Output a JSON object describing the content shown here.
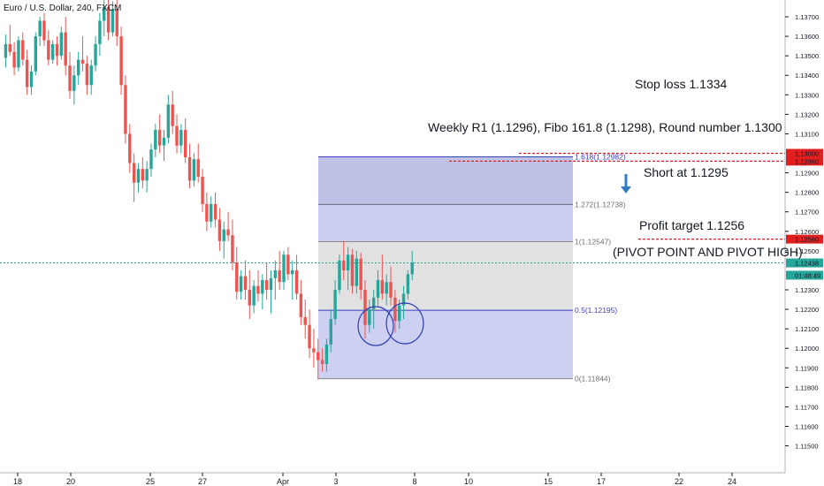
{
  "chart_data": {
    "type": "candlestick",
    "symbol_title": "Euro / U.S. Dollar, 240, FXCM",
    "x_tick_labels": [
      "18",
      "20",
      "25",
      "27",
      "Apr",
      "3",
      "8",
      "10",
      "15",
      "17",
      "22",
      "24"
    ],
    "y_tick_labels": [
      "1.13700",
      "1.13600",
      "1.13500",
      "1.13400",
      "1.13300",
      "1.13200",
      "1.13100",
      "1.12900",
      "1.12800",
      "1.12700",
      "1.12600",
      "1.12500",
      "1.12300",
      "1.12200",
      "1.12100",
      "1.12000",
      "1.11900",
      "1.11800",
      "1.11700",
      "1.11600",
      "1.11500"
    ],
    "ylim": [
      1.1143,
      1.1375
    ],
    "price_tags": [
      {
        "value": 1.13,
        "label": "1.13000",
        "kind": "level"
      },
      {
        "value": 1.1296,
        "label": "1.12960",
        "kind": "level"
      },
      {
        "value": 1.1256,
        "label": "1.12560",
        "kind": "level"
      },
      {
        "value": 1.12438,
        "label": "1.12438",
        "kind": "last"
      },
      {
        "value": 1.12375,
        "label": "01:48:49",
        "kind": "countdown"
      }
    ],
    "fibonacci": [
      {
        "label": "1.618(1.12982)",
        "price": 1.12982
      },
      {
        "label": "1.272(1.12738)",
        "price": 1.12738
      },
      {
        "label": "1(1.12547)",
        "price": 1.12547
      },
      {
        "label": "0.5(1.12195)",
        "price": 1.12195
      },
      {
        "label": "0(1.11844)",
        "price": 1.11844
      }
    ],
    "annotations": {
      "stop_loss": "Stop loss 1.1334",
      "confluence": "Weekly R1 (1.1296), Fibo 161.8 (1.1298), Round number 1.1300",
      "short_entry": "Short at 1.1295",
      "profit_target": "Profit target 1.1256",
      "pivot_note": "(PIVOT POINT AND PIVOT HIGH)"
    },
    "colors": {
      "up": "#26a69a",
      "down": "#ef5350",
      "fib_line": "#3f3fbf",
      "fib_fill": "#c5c8f0",
      "fib_gray": "#dcdcdc",
      "level_tag": "#e02020",
      "last_tag": "#26a69a",
      "arrow": "#2f7dc3"
    },
    "candles": [
      [
        1.1349,
        1.1361,
        1.1344,
        1.1356
      ],
      [
        1.1356,
        1.1366,
        1.135,
        1.1352
      ],
      [
        1.1352,
        1.1357,
        1.134,
        1.1344
      ],
      [
        1.1344,
        1.136,
        1.1342,
        1.1358
      ],
      [
        1.1358,
        1.1362,
        1.1345,
        1.1348
      ],
      [
        1.1348,
        1.1353,
        1.133,
        1.1334
      ],
      [
        1.1334,
        1.1345,
        1.133,
        1.1342
      ],
      [
        1.1342,
        1.1362,
        1.134,
        1.136
      ],
      [
        1.136,
        1.137,
        1.1355,
        1.1368
      ],
      [
        1.1368,
        1.1372,
        1.1355,
        1.1358
      ],
      [
        1.1358,
        1.1363,
        1.1345,
        1.1348
      ],
      [
        1.1348,
        1.1358,
        1.1346,
        1.1356
      ],
      [
        1.1356,
        1.136,
        1.1345,
        1.135
      ],
      [
        1.135,
        1.1365,
        1.1348,
        1.1362
      ],
      [
        1.1362,
        1.137,
        1.134,
        1.1345
      ],
      [
        1.1345,
        1.1352,
        1.1328,
        1.1332
      ],
      [
        1.1332,
        1.1345,
        1.1325,
        1.134
      ],
      [
        1.134,
        1.1352,
        1.1335,
        1.1348
      ],
      [
        1.1348,
        1.136,
        1.1342,
        1.1346
      ],
      [
        1.1346,
        1.135,
        1.133,
        1.1335
      ],
      [
        1.1335,
        1.1348,
        1.133,
        1.1345
      ],
      [
        1.1345,
        1.136,
        1.1342,
        1.1356
      ],
      [
        1.1356,
        1.1372,
        1.135,
        1.1368
      ],
      [
        1.1368,
        1.138,
        1.136,
        1.1375
      ],
      [
        1.1375,
        1.138,
        1.1358,
        1.1362
      ],
      [
        1.1362,
        1.1378,
        1.136,
        1.1374
      ],
      [
        1.1374,
        1.138,
        1.1355,
        1.136
      ],
      [
        1.136,
        1.1365,
        1.133,
        1.1335
      ],
      [
        1.1335,
        1.134,
        1.1305,
        1.131
      ],
      [
        1.131,
        1.1315,
        1.129,
        1.1295
      ],
      [
        1.1295,
        1.13,
        1.1275,
        1.1285
      ],
      [
        1.1285,
        1.1295,
        1.128,
        1.1292
      ],
      [
        1.1292,
        1.1298,
        1.1282,
        1.1286
      ],
      [
        1.1286,
        1.1296,
        1.128,
        1.1292
      ],
      [
        1.1292,
        1.1305,
        1.1288,
        1.1302
      ],
      [
        1.1302,
        1.1315,
        1.1298,
        1.1312
      ],
      [
        1.1312,
        1.132,
        1.13,
        1.1304
      ],
      [
        1.1304,
        1.1312,
        1.1296,
        1.1308
      ],
      [
        1.1308,
        1.133,
        1.1305,
        1.1325
      ],
      [
        1.1325,
        1.1332,
        1.131,
        1.1314
      ],
      [
        1.1314,
        1.132,
        1.13,
        1.1304
      ],
      [
        1.1304,
        1.1315,
        1.13,
        1.1312
      ],
      [
        1.1312,
        1.1318,
        1.1295,
        1.1298
      ],
      [
        1.1298,
        1.1305,
        1.1282,
        1.1286
      ],
      [
        1.1286,
        1.13,
        1.1283,
        1.1297
      ],
      [
        1.1297,
        1.1305,
        1.1285,
        1.1288
      ],
      [
        1.1288,
        1.1292,
        1.127,
        1.1274
      ],
      [
        1.1274,
        1.128,
        1.126,
        1.1265
      ],
      [
        1.1265,
        1.1278,
        1.1262,
        1.1274
      ],
      [
        1.1274,
        1.128,
        1.1262,
        1.1266
      ],
      [
        1.1266,
        1.1272,
        1.125,
        1.1255
      ],
      [
        1.1255,
        1.1265,
        1.1246,
        1.1261
      ],
      [
        1.1261,
        1.127,
        1.1255,
        1.1258
      ],
      [
        1.1258,
        1.1266,
        1.124,
        1.1244
      ],
      [
        1.1244,
        1.1252,
        1.1225,
        1.1229
      ],
      [
        1.1229,
        1.124,
        1.1225,
        1.1237
      ],
      [
        1.1237,
        1.1245,
        1.1225,
        1.123
      ],
      [
        1.123,
        1.124,
        1.1215,
        1.1222
      ],
      [
        1.1222,
        1.1235,
        1.1218,
        1.1232
      ],
      [
        1.1232,
        1.124,
        1.1224,
        1.1228
      ],
      [
        1.1228,
        1.1238,
        1.122,
        1.1235
      ],
      [
        1.1235,
        1.1244,
        1.1225,
        1.123
      ],
      [
        1.123,
        1.124,
        1.1218,
        1.1236
      ],
      [
        1.1236,
        1.1245,
        1.1225,
        1.124
      ],
      [
        1.124,
        1.125,
        1.123,
        1.1234
      ],
      [
        1.1234,
        1.125,
        1.123,
        1.1248
      ],
      [
        1.1248,
        1.1252,
        1.1235,
        1.1238
      ],
      [
        1.1238,
        1.1245,
        1.1225,
        1.124
      ],
      [
        1.124,
        1.1248,
        1.1225,
        1.1228
      ],
      [
        1.1228,
        1.1235,
        1.1212,
        1.1216
      ],
      [
        1.1216,
        1.1225,
        1.1205,
        1.1212
      ],
      [
        1.1212,
        1.122,
        1.1195,
        1.12
      ],
      [
        1.12,
        1.121,
        1.119,
        1.1198
      ],
      [
        1.1198,
        1.1205,
        1.1184,
        1.1194
      ],
      [
        1.1194,
        1.12,
        1.1188,
        1.1192
      ],
      [
        1.1192,
        1.1205,
        1.1188,
        1.1202
      ],
      [
        1.1202,
        1.122,
        1.1198,
        1.1215
      ],
      [
        1.1215,
        1.1235,
        1.1212,
        1.123
      ],
      [
        1.123,
        1.1248,
        1.1228,
        1.1245
      ],
      [
        1.1245,
        1.1255,
        1.1235,
        1.124
      ],
      [
        1.124,
        1.1252,
        1.123,
        1.1248
      ],
      [
        1.1248,
        1.1251,
        1.1228,
        1.1232
      ],
      [
        1.1232,
        1.125,
        1.1228,
        1.1246
      ],
      [
        1.1246,
        1.1249,
        1.1225,
        1.123
      ],
      [
        1.123,
        1.1235,
        1.1205,
        1.1212
      ],
      [
        1.1212,
        1.1225,
        1.1208,
        1.122
      ],
      [
        1.122,
        1.123,
        1.121,
        1.1226
      ],
      [
        1.1226,
        1.124,
        1.1222,
        1.1235
      ],
      [
        1.1235,
        1.1248,
        1.1225,
        1.1228
      ],
      [
        1.1228,
        1.1238,
        1.1222,
        1.1234
      ],
      [
        1.1234,
        1.1242,
        1.1222,
        1.1226
      ],
      [
        1.1226,
        1.123,
        1.1208,
        1.1214
      ],
      [
        1.1214,
        1.1225,
        1.121,
        1.1222
      ],
      [
        1.1222,
        1.1232,
        1.1215,
        1.1228
      ],
      [
        1.1228,
        1.124,
        1.1225,
        1.1238
      ],
      [
        1.1238,
        1.125,
        1.1235,
        1.1244
      ]
    ]
  }
}
